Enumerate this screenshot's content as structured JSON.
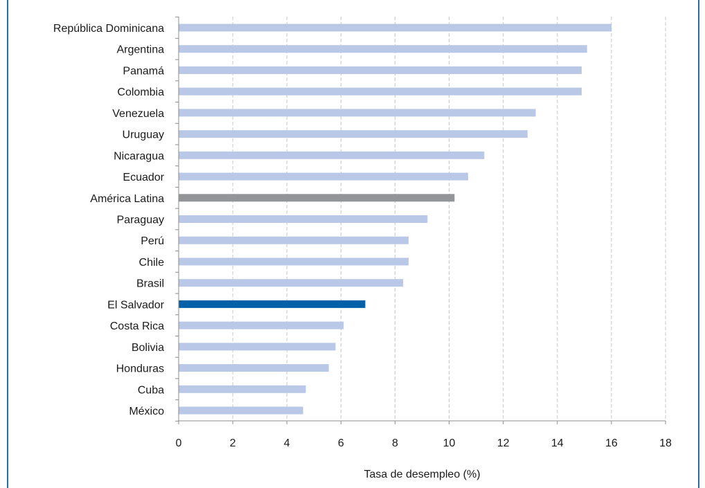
{
  "chart_data": {
    "type": "bar",
    "orientation": "horizontal",
    "categories": [
      "República Dominicana",
      "Argentina",
      "Panamá",
      "Colombia",
      "Venezuela",
      "Uruguay",
      "Nicaragua",
      "Ecuador",
      "América Latina",
      "Paraguay",
      "Perú",
      "Chile",
      "Brasil",
      "El Salvador",
      "Costa Rica",
      "Bolivia",
      "Honduras",
      "Cuba",
      "México"
    ],
    "values": [
      16.0,
      15.1,
      14.9,
      14.9,
      13.2,
      12.9,
      11.3,
      10.7,
      10.2,
      9.2,
      8.5,
      8.5,
      8.3,
      6.9,
      6.1,
      5.8,
      5.55,
      4.7,
      4.6
    ],
    "highlight": {
      "América Latina": "#939598",
      "El Salvador": "#0061a8"
    },
    "default_color": "#b8c8e6",
    "xlabel": "Tasa de desempleo (%)",
    "xlim": [
      0,
      18
    ],
    "xticks": [
      0,
      2,
      4,
      6,
      8,
      10,
      12,
      14,
      16,
      18
    ],
    "grid": "vertical-dashed",
    "frame_color": "#1f6fb0"
  }
}
